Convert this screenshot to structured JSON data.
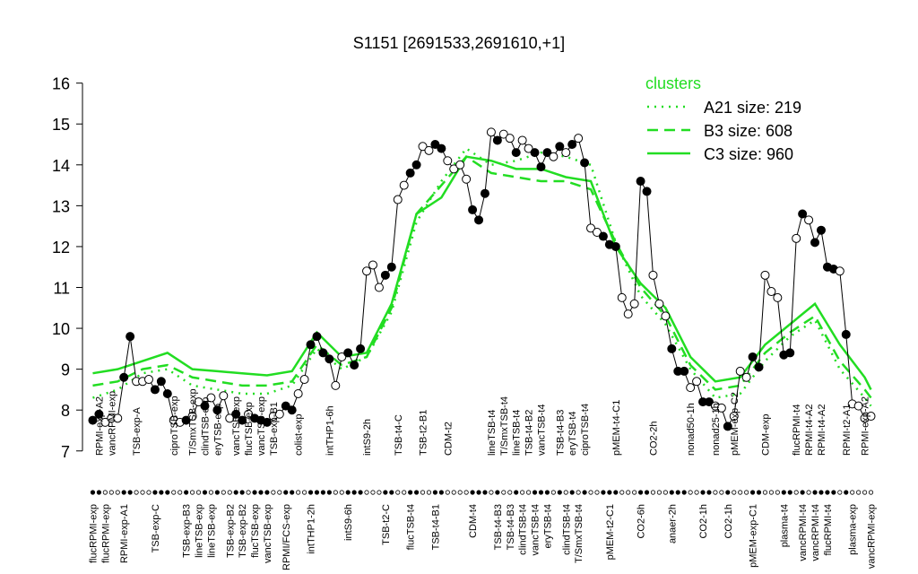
{
  "chart_data": {
    "type": "line",
    "title": "S1151 [2691533,2691610,+1]",
    "categories": [
      "flucRPMI-exp",
      "RPMI-exp-A2",
      "flucRPMI-exp",
      "vancRPMI-exp",
      null,
      "RPMI-exp-A1",
      null,
      "TSB-exp-A",
      null,
      null,
      "TSB-exp-C",
      null,
      null,
      "ciproTSB-exp",
      null,
      "TSB-exp-B3",
      "T/SmxTSB-exp",
      "lineTSB-exp",
      "clindTSB-exp",
      "lineTSB-exp",
      "eryTSB-exp",
      null,
      "TSB-exp-B2",
      "vancTSB-exp",
      "TSB-exp-B2",
      "flucTSB-exp",
      "flucTSB-exp",
      "vancTSB-exp",
      "vancTSB-exp",
      "TSB-exp-B1",
      null,
      "RPMI/FCS-exp",
      null,
      "colist-exp",
      null,
      "intTHP1-2h",
      null,
      null,
      "intTHP1-6h",
      null,
      null,
      "intS9-6h",
      null,
      null,
      "intS9-2h",
      null,
      null,
      "TSB-t2-C",
      null,
      "TSB-t4-C",
      null,
      "flucTSB-t4",
      null,
      "TSB-t2-B1",
      null,
      "TSB-t4-B1",
      null,
      "CDM-t2",
      null,
      null,
      null,
      "CDM-t4",
      null,
      null,
      "lineTSB-t4",
      "TSB-t4-B3",
      "T/SmxTSB-t4",
      "TSB-t4-B3",
      "lineTSB-t4",
      "clindTSB-t4",
      "TSB-t4-B2",
      "vancTSB-t4",
      "vancTSB-t4",
      "eryTSB-t4",
      null,
      "TSB-t4-B3",
      "clindTSB-t4",
      "eryTSB-t4",
      "T/SmxTSB-t4",
      "ciproTSB-t4",
      null,
      null,
      null,
      "pMEM-t2-C1",
      "pMEM-t4-C1",
      null,
      null,
      null,
      "CO2-6h",
      null,
      "CO2-2h",
      null,
      null,
      "anaer-2h",
      null,
      null,
      "nonad50-1h",
      null,
      "CO2-1h",
      null,
      "nonad25-1h",
      null,
      "CO2-1h",
      "pMEM-exp-C2",
      null,
      null,
      "pMEM-exp-C1",
      null,
      "CDM-exp",
      null,
      null,
      "plasma-t4",
      null,
      "flucRPMI-t4",
      "vancRPMI-t4",
      "RPMI-t4-A2",
      "vancRPMI-t4",
      "RPMI-t4-A2",
      "flucRPMI-t4",
      null,
      null,
      "RPMI-t2-A1",
      "plasma-exp",
      null,
      "RPMI-exp-A2",
      "vancRPMI-exp"
    ],
    "series": [
      {
        "color": "#000000",
        "values": [
          7.75,
          7.9,
          7.7,
          7.8,
          7.8,
          8.8,
          9.8,
          8.7,
          8.7,
          8.75,
          8.5,
          8.7,
          8.4,
          7.75,
          7.7,
          7.75,
          7.85,
          8.2,
          8.1,
          8.3,
          8.0,
          8.35,
          7.8,
          7.9,
          7.75,
          7.9,
          7.8,
          7.75,
          7.7,
          7.85,
          7.9,
          8.1,
          8.0,
          8.4,
          8.75,
          9.6,
          9.8,
          9.4,
          9.25,
          8.6,
          9.3,
          9.4,
          9.1,
          9.5,
          11.4,
          11.55,
          11.0,
          11.3,
          11.5,
          13.15,
          13.5,
          13.8,
          14.0,
          14.45,
          14.35,
          14.5,
          14.4,
          14.1,
          13.9,
          14.0,
          13.65,
          12.9,
          12.65,
          13.3,
          14.8,
          14.6,
          14.75,
          14.65,
          14.3,
          14.6,
          14.4,
          14.3,
          13.95,
          14.3,
          14.2,
          14.45,
          14.3,
          14.5,
          14.65,
          14.05,
          12.45,
          12.35,
          12.25,
          12.05,
          12.0,
          10.75,
          10.35,
          10.6,
          13.6,
          13.35,
          11.3,
          10.6,
          10.3,
          9.5,
          8.95,
          8.95,
          8.55,
          8.7,
          8.2,
          8.2,
          8.1,
          8.05,
          7.6,
          7.85,
          8.95,
          8.8,
          9.3,
          9.05,
          11.3,
          10.9,
          10.75,
          9.35,
          9.4,
          12.2,
          12.8,
          12.65,
          12.1,
          12.4,
          11.5,
          11.45,
          11.4,
          9.85,
          8.15,
          8.1,
          7.8,
          7.85
        ],
        "filled": [
          true,
          true,
          false,
          false,
          false,
          true,
          true,
          false,
          false,
          false,
          true,
          true,
          true,
          false,
          false,
          true,
          false,
          false,
          true,
          false,
          true,
          false,
          false,
          true,
          true,
          false,
          true,
          true,
          true,
          false,
          false,
          true,
          true,
          false,
          false,
          true,
          true,
          true,
          true,
          false,
          false,
          true,
          true,
          true,
          false,
          false,
          false,
          true,
          true,
          false,
          false,
          true,
          true,
          false,
          false,
          true,
          true,
          false,
          false,
          false,
          false,
          true,
          true,
          true,
          false,
          true,
          false,
          false,
          true,
          false,
          false,
          true,
          true,
          true,
          false,
          true,
          false,
          true,
          false,
          true,
          false,
          false,
          true,
          true,
          true,
          false,
          false,
          false,
          true,
          true,
          false,
          false,
          false,
          true,
          true,
          true,
          false,
          false,
          true,
          true,
          false,
          false,
          true,
          false,
          false,
          false,
          true,
          true,
          false,
          false,
          false,
          true,
          true,
          false,
          true,
          false,
          true,
          true,
          true,
          true,
          false,
          true,
          false,
          false,
          false,
          false
        ]
      }
    ],
    "clusters": {
      "title": "clusters",
      "color": "#22dd22",
      "series": [
        {
          "name": "A21 size: 219",
          "style": "dotted",
          "x": [
            0,
            4,
            8,
            12,
            16,
            20,
            24,
            28,
            32,
            36,
            40,
            44,
            48,
            52,
            56,
            60,
            64,
            68,
            72,
            76,
            80,
            84,
            88,
            92,
            96,
            100,
            104,
            108,
            112,
            116,
            120,
            124,
            125
          ],
          "values": [
            8.3,
            8.5,
            8.9,
            9.0,
            8.6,
            8.5,
            8.4,
            8.4,
            8.6,
            9.5,
            9.0,
            9.3,
            10.4,
            12.6,
            13.6,
            14.4,
            14.0,
            14.1,
            14.3,
            14.2,
            14.0,
            12.1,
            10.8,
            10.1,
            9.0,
            8.3,
            8.4,
            9.2,
            9.8,
            10.2,
            9.0,
            8.3,
            8.1
          ]
        },
        {
          "name": "B3 size: 608",
          "style": "dashed",
          "x": [
            0,
            4,
            8,
            12,
            16,
            20,
            24,
            28,
            32,
            36,
            40,
            44,
            48,
            52,
            56,
            60,
            64,
            68,
            72,
            76,
            80,
            84,
            88,
            92,
            96,
            100,
            104,
            108,
            112,
            116,
            120,
            124,
            125
          ],
          "values": [
            8.6,
            8.7,
            9.0,
            9.1,
            8.8,
            8.7,
            8.6,
            8.6,
            8.7,
            9.6,
            9.1,
            9.3,
            10.5,
            12.8,
            13.5,
            14.2,
            13.8,
            13.7,
            13.6,
            13.6,
            13.4,
            12.1,
            11.0,
            10.3,
            9.1,
            8.5,
            8.6,
            9.4,
            9.9,
            10.3,
            9.2,
            8.5,
            8.3
          ]
        },
        {
          "name": "C3 size: 960",
          "style": "solid",
          "x": [
            0,
            4,
            8,
            12,
            16,
            20,
            24,
            28,
            32,
            36,
            40,
            44,
            48,
            52,
            56,
            60,
            64,
            68,
            72,
            76,
            80,
            84,
            88,
            92,
            96,
            100,
            104,
            108,
            112,
            116,
            120,
            124,
            125
          ],
          "values": [
            8.9,
            9.0,
            9.2,
            9.4,
            9.0,
            8.95,
            8.9,
            8.85,
            8.95,
            9.9,
            9.3,
            9.4,
            10.6,
            12.8,
            13.2,
            14.2,
            14.1,
            13.9,
            13.9,
            13.7,
            13.6,
            12.0,
            11.1,
            10.5,
            9.3,
            8.7,
            8.8,
            9.6,
            10.1,
            10.6,
            9.6,
            8.8,
            8.5
          ]
        }
      ]
    },
    "legend": "topright",
    "ylim": [
      6.6,
      16.3
    ],
    "yticks": [
      7,
      8,
      9,
      10,
      11,
      12,
      13,
      14,
      15,
      16
    ]
  }
}
